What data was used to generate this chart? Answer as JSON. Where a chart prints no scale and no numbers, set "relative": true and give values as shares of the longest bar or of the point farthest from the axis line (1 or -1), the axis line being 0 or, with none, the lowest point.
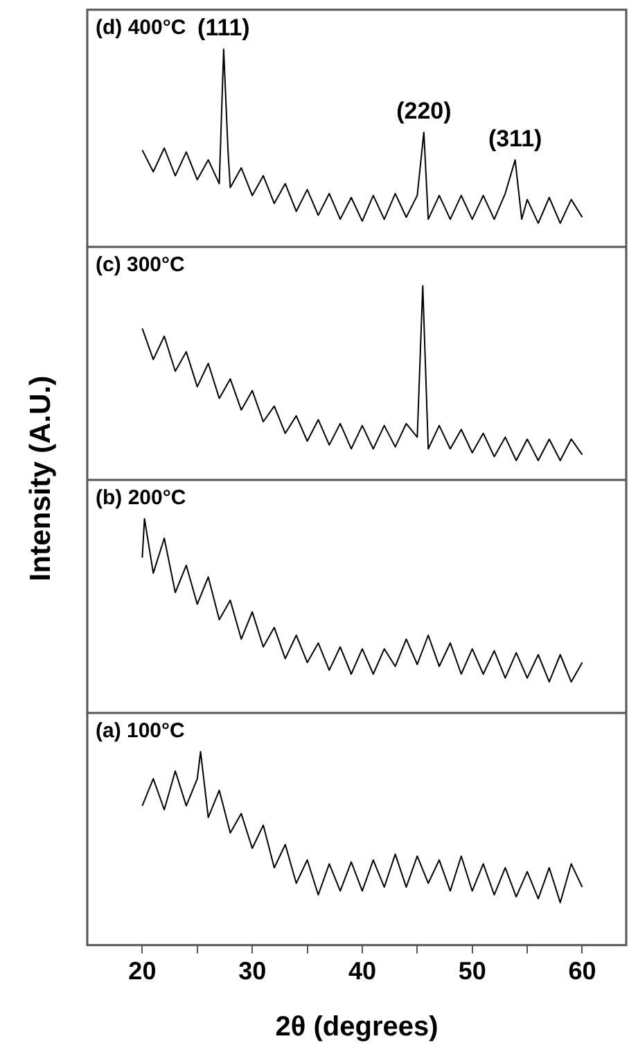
{
  "chart_data": [
    {
      "type": "line",
      "title": "(d) 400°C",
      "ylabel": "Intensity (A.U.)",
      "relative": true,
      "xlim": [
        15,
        64
      ],
      "tick_labels": false,
      "x": [
        20,
        21,
        22,
        23,
        24,
        25,
        26,
        27,
        27.4,
        27.8,
        28,
        29,
        30,
        31,
        32,
        33,
        34,
        35,
        36,
        37,
        38,
        39,
        40,
        41,
        42,
        43,
        44,
        45,
        45.6,
        46,
        47,
        48,
        49,
        50,
        51,
        52,
        53,
        53.9,
        54.5,
        55,
        56,
        57,
        58,
        59,
        60
      ],
      "series": [
        {
          "color": "#000000",
          "values": [
            0.49,
            0.38,
            0.5,
            0.36,
            0.48,
            0.34,
            0.44,
            0.32,
            1,
            0.48,
            0.3,
            0.4,
            0.26,
            0.36,
            0.22,
            0.32,
            0.18,
            0.29,
            0.16,
            0.27,
            0.14,
            0.25,
            0.13,
            0.26,
            0.14,
            0.27,
            0.15,
            0.26,
            0.58,
            0.14,
            0.26,
            0.14,
            0.26,
            0.14,
            0.26,
            0.14,
            0.27,
            0.44,
            0.14,
            0.24,
            0.12,
            0.25,
            0.12,
            0.24,
            0.15
          ]
        }
      ],
      "annotations": [
        {
          "text": "(111)",
          "x": 27.4,
          "y": 1
        },
        {
          "text": "(220)",
          "x": 45.6,
          "y": 0.58
        },
        {
          "text": "(311)",
          "x": 53.9,
          "y": 0.44
        }
      ]
    },
    {
      "type": "line",
      "title": "(c) 300°C",
      "relative": true,
      "xlim": [
        15,
        64
      ],
      "tick_labels": false,
      "x": [
        20,
        21,
        22,
        23,
        24,
        25,
        26,
        27,
        28,
        29,
        30,
        31,
        32,
        33,
        34,
        35,
        36,
        37,
        38,
        39,
        40,
        41,
        42,
        43,
        44,
        45,
        45.5,
        46,
        47,
        48,
        49,
        50,
        51,
        52,
        53,
        54,
        55,
        56,
        57,
        58,
        59,
        60
      ],
      "series": [
        {
          "color": "#000000",
          "values": [
            0.78,
            0.62,
            0.74,
            0.56,
            0.66,
            0.48,
            0.6,
            0.42,
            0.52,
            0.36,
            0.46,
            0.3,
            0.38,
            0.24,
            0.33,
            0.2,
            0.31,
            0.18,
            0.29,
            0.16,
            0.28,
            0.16,
            0.28,
            0.17,
            0.29,
            0.22,
            1,
            0.16,
            0.28,
            0.16,
            0.26,
            0.14,
            0.24,
            0.12,
            0.22,
            0.1,
            0.21,
            0.1,
            0.21,
            0.1,
            0.21,
            0.13
          ]
        }
      ]
    },
    {
      "type": "line",
      "title": "(b) 200°C",
      "relative": true,
      "xlim": [
        15,
        64
      ],
      "tick_labels": false,
      "x": [
        20,
        20.2,
        21,
        22,
        23,
        24,
        25,
        26,
        27,
        28,
        29,
        30,
        31,
        32,
        33,
        34,
        35,
        36,
        37,
        38,
        39,
        40,
        41,
        42,
        43,
        44,
        45,
        46,
        47,
        48,
        49,
        50,
        51,
        52,
        53,
        54,
        55,
        56,
        57,
        58,
        59,
        60
      ],
      "series": [
        {
          "color": "#000000",
          "values": [
            0.8,
            1,
            0.72,
            0.9,
            0.62,
            0.76,
            0.56,
            0.7,
            0.48,
            0.58,
            0.38,
            0.52,
            0.34,
            0.44,
            0.28,
            0.4,
            0.26,
            0.36,
            0.22,
            0.34,
            0.2,
            0.33,
            0.2,
            0.33,
            0.24,
            0.38,
            0.25,
            0.4,
            0.24,
            0.36,
            0.2,
            0.33,
            0.2,
            0.32,
            0.18,
            0.31,
            0.18,
            0.3,
            0.16,
            0.3,
            0.16,
            0.26
          ]
        }
      ]
    },
    {
      "type": "line",
      "title": "(a) 100°C",
      "xlabel": "2θ (degrees)",
      "relative": true,
      "xlim": [
        15,
        64
      ],
      "tick_labels": "x",
      "xticks": [
        20,
        {
          "value": 25,
          "label": null
        },
        30,
        {
          "value": 35,
          "label": null
        },
        40,
        {
          "value": 45,
          "label": null
        },
        50,
        {
          "value": 55,
          "label": null
        },
        60
      ],
      "x": [
        20,
        21,
        22,
        23,
        24,
        25,
        25.3,
        26,
        27,
        28,
        29,
        30,
        31,
        32,
        33,
        34,
        35,
        36,
        37,
        38,
        39,
        40,
        41,
        42,
        43,
        44,
        45,
        46,
        47,
        48,
        49,
        50,
        51,
        52,
        53,
        54,
        55,
        56,
        57,
        58,
        59,
        60
      ],
      "series": [
        {
          "color": "#000000",
          "values": [
            0.72,
            0.86,
            0.7,
            0.9,
            0.72,
            0.86,
            1,
            0.66,
            0.8,
            0.58,
            0.68,
            0.5,
            0.62,
            0.4,
            0.52,
            0.32,
            0.44,
            0.26,
            0.42,
            0.28,
            0.43,
            0.28,
            0.44,
            0.3,
            0.47,
            0.3,
            0.46,
            0.32,
            0.44,
            0.28,
            0.46,
            0.28,
            0.42,
            0.26,
            0.4,
            0.25,
            0.38,
            0.24,
            0.4,
            0.22,
            0.42,
            0.3
          ]
        }
      ]
    }
  ]
}
